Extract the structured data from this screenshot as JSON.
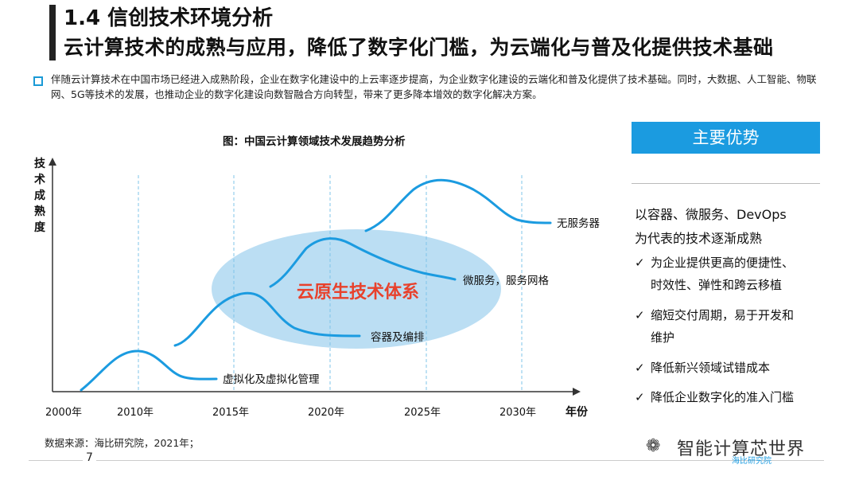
{
  "header": {
    "section_title": "1.4 信创技术环境分析",
    "headline": "云计算技术的成熟与应用，降低了数字化门槛，为云端化与普及化提供技术基础"
  },
  "intro": {
    "text": "伴随云计算技术在中国市场已经进入成熟阶段，企业在数字化建设中的上云率逐步提高，为企业数字化建设的云端化和普及化提供了技术基础。同时，大数据、人工智能、物联网、5G等技术的发展，也推动企业的数字化建设向数智融合方向转型，带来了更多降本增效的数字化解决方案。"
  },
  "figure": {
    "title": "图：中国云计算领域技术发展趋势分析",
    "y_axis_label": [
      "技",
      "术",
      "成",
      "熟",
      "度"
    ],
    "x_axis_label": "年份",
    "x_ticks": [
      "2000年",
      "2010年",
      "2015年",
      "2020年",
      "2025年",
      "2030年"
    ],
    "ellipse_label": "云原生技术体系",
    "source": "数据来源：海比研究院，2021年；"
  },
  "chart_data": {
    "type": "line",
    "xlabel": "年份",
    "ylabel": "技术成熟度",
    "x_ticks": [
      2000,
      2010,
      2015,
      2020,
      2025,
      2030
    ],
    "series": [
      {
        "name": "虚拟化及虚拟化管理"
      },
      {
        "name": "容器及编排"
      },
      {
        "name": "微服务，服务网格"
      },
      {
        "name": "无服务器"
      }
    ],
    "annotations": [
      "云原生技术体系"
    ],
    "colors": {
      "curve": "#1b9be0",
      "ellipse": "#aad6f0",
      "highlight_text": "#e8412c",
      "axis": "#333333",
      "grid": "#7fc4ea"
    }
  },
  "advantages": {
    "header": "主要优势",
    "summary": [
      "以容器、微服务、DevOps",
      "为代表的技术逐渐成熟"
    ],
    "items": [
      {
        "icon": "check-icon",
        "text": [
          "为企业提供更高的便捷性、",
          "时效性、弹性和跨云移植"
        ]
      },
      {
        "icon": "check-icon",
        "text": [
          "缩短交付周期，易于开发和",
          "维护"
        ]
      },
      {
        "icon": "check-icon",
        "text": [
          "降低新兴领域试错成本"
        ]
      },
      {
        "icon": "check-icon",
        "text": [
          "降低企业数字化的准入门槛"
        ]
      }
    ]
  },
  "footer": {
    "page_number": "7",
    "watermark": "智能计算芯世界",
    "watermark_tag": "海比研究院"
  }
}
